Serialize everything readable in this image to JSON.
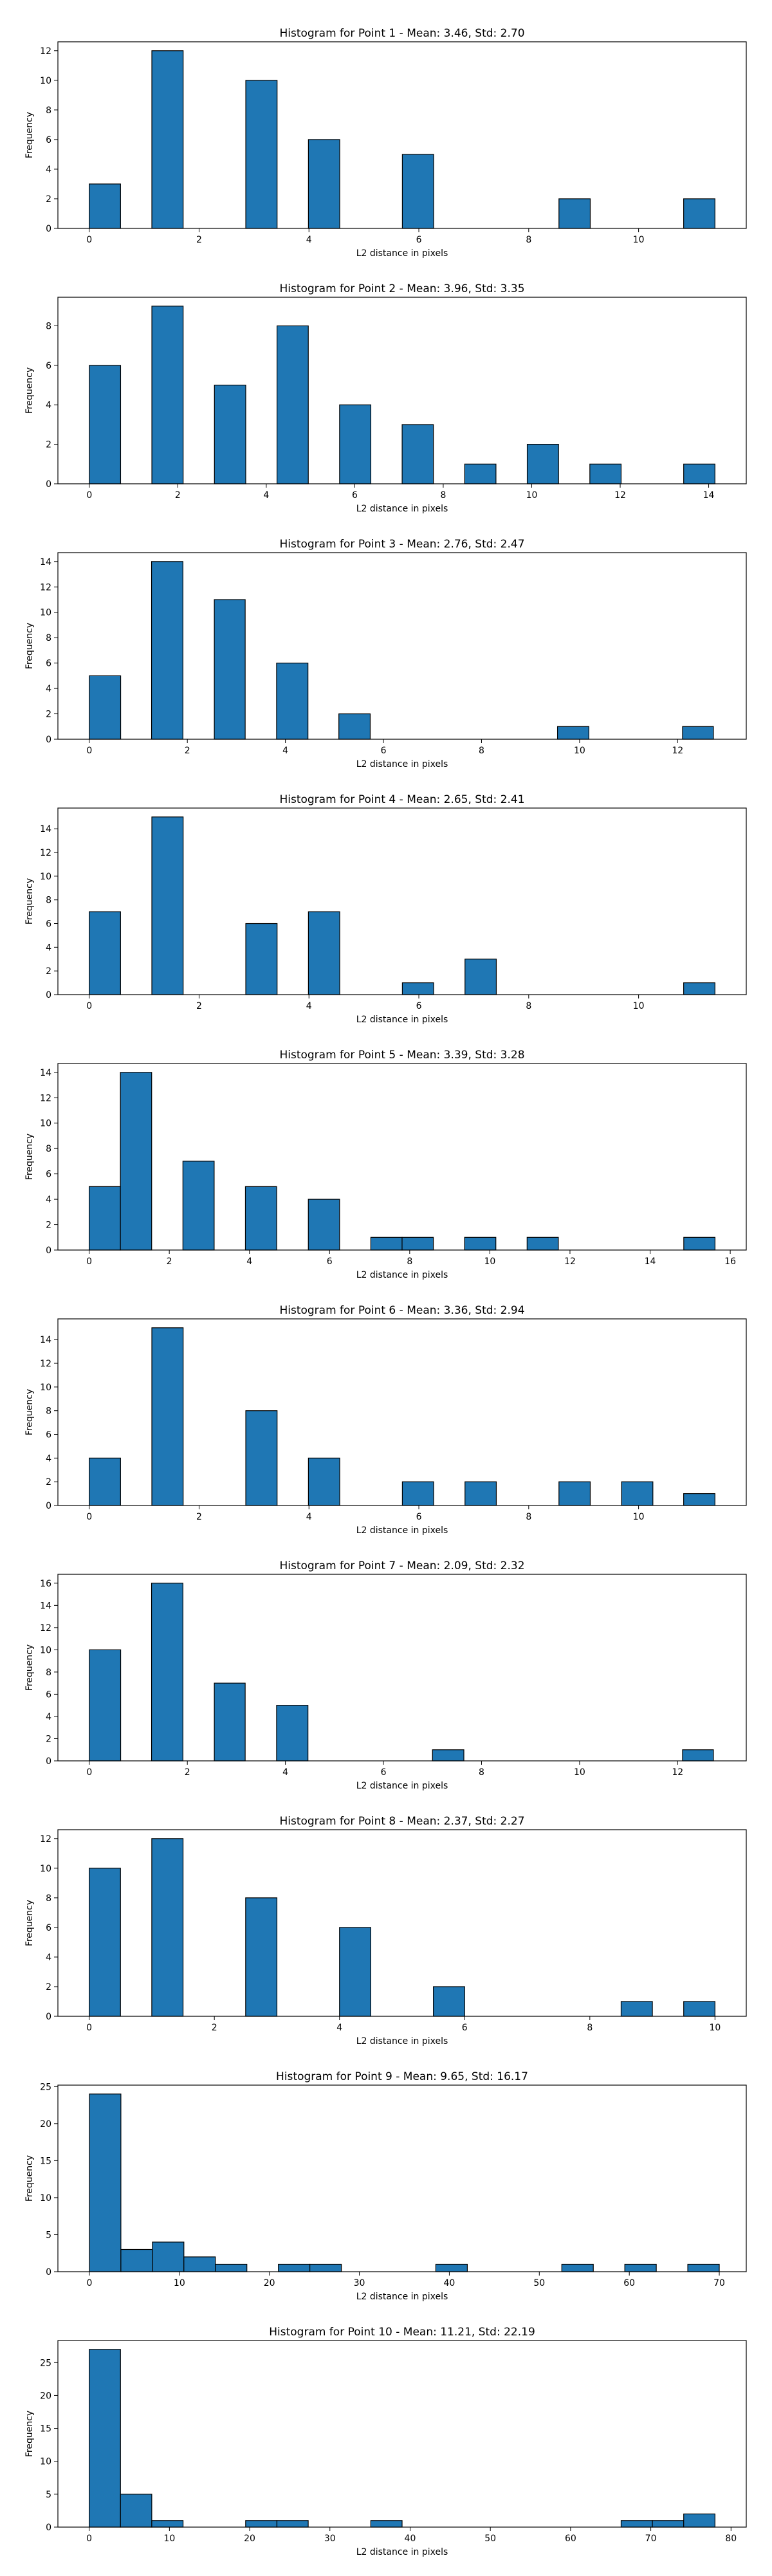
{
  "chart_data": [
    {
      "type": "bar",
      "title": "Histogram for Point 1 - Mean: 3.46, Std: 2.70",
      "xlabel": "L2 distance in pixels",
      "ylabel": "Frequency",
      "xlim": [
        -0.57,
        11.96
      ],
      "ylim": [
        0,
        12.6
      ],
      "xticks": [
        0,
        2,
        4,
        6,
        8,
        10
      ],
      "yticks": [
        0,
        2,
        4,
        6,
        8,
        10,
        12
      ],
      "bins": [
        {
          "x0": 0,
          "x1": 0.57,
          "v": 3
        },
        {
          "x0": 1.14,
          "x1": 1.71,
          "v": 12
        },
        {
          "x0": 2.85,
          "x1": 3.42,
          "v": 10
        },
        {
          "x0": 3.99,
          "x1": 4.56,
          "v": 6
        },
        {
          "x0": 5.7,
          "x1": 6.27,
          "v": 5
        },
        {
          "x0": 8.55,
          "x1": 9.12,
          "v": 2
        },
        {
          "x0": 10.82,
          "x1": 11.39,
          "v": 2
        }
      ]
    },
    {
      "type": "bar",
      "title": "Histogram for Point 2 - Mean: 3.96, Std: 3.35",
      "xlabel": "L2 distance in pixels",
      "ylabel": "Frequency",
      "xlim": [
        -0.71,
        14.85
      ],
      "ylim": [
        0,
        9.45
      ],
      "xticks": [
        0,
        2,
        4,
        6,
        8,
        10,
        12,
        14
      ],
      "yticks": [
        0,
        2,
        4,
        6,
        8
      ],
      "bins": [
        {
          "x0": 0,
          "x1": 0.707,
          "v": 6
        },
        {
          "x0": 1.414,
          "x1": 2.121,
          "v": 9
        },
        {
          "x0": 2.828,
          "x1": 3.536,
          "v": 5
        },
        {
          "x0": 4.243,
          "x1": 4.95,
          "v": 8
        },
        {
          "x0": 5.657,
          "x1": 6.364,
          "v": 4
        },
        {
          "x0": 7.071,
          "x1": 7.778,
          "v": 3
        },
        {
          "x0": 8.485,
          "x1": 9.192,
          "v": 1
        },
        {
          "x0": 9.899,
          "x1": 10.607,
          "v": 2
        },
        {
          "x0": 11.314,
          "x1": 12.021,
          "v": 1
        },
        {
          "x0": 13.435,
          "x1": 14.142,
          "v": 1
        }
      ]
    },
    {
      "type": "bar",
      "title": "Histogram for Point 3 - Mean: 2.76, Std: 2.47",
      "xlabel": "L2 distance in pixels",
      "ylabel": "Frequency",
      "xlim": [
        -0.64,
        13.4
      ],
      "ylim": [
        0,
        14.7
      ],
      "xticks": [
        0,
        2,
        4,
        6,
        8,
        10,
        12
      ],
      "yticks": [
        0,
        2,
        4,
        6,
        8,
        10,
        12,
        14
      ],
      "bins": [
        {
          "x0": 0,
          "x1": 0.64,
          "v": 5
        },
        {
          "x0": 1.27,
          "x1": 1.91,
          "v": 14
        },
        {
          "x0": 2.55,
          "x1": 3.18,
          "v": 11
        },
        {
          "x0": 3.82,
          "x1": 4.46,
          "v": 6
        },
        {
          "x0": 5.09,
          "x1": 5.73,
          "v": 2
        },
        {
          "x0": 9.55,
          "x1": 10.19,
          "v": 1
        },
        {
          "x0": 12.1,
          "x1": 12.73,
          "v": 1
        }
      ]
    },
    {
      "type": "bar",
      "title": "Histogram for Point 4 - Mean: 2.65, Std: 2.41",
      "xlabel": "L2 distance in pixels",
      "ylabel": "Frequency",
      "xlim": [
        -0.57,
        11.96
      ],
      "ylim": [
        0,
        15.75
      ],
      "xticks": [
        0,
        2,
        4,
        6,
        8,
        10
      ],
      "yticks": [
        0,
        2,
        4,
        6,
        8,
        10,
        12,
        14
      ],
      "bins": [
        {
          "x0": 0,
          "x1": 0.57,
          "v": 7
        },
        {
          "x0": 1.14,
          "x1": 1.71,
          "v": 15
        },
        {
          "x0": 2.85,
          "x1": 3.42,
          "v": 6
        },
        {
          "x0": 3.99,
          "x1": 4.56,
          "v": 7
        },
        {
          "x0": 5.7,
          "x1": 6.27,
          "v": 1
        },
        {
          "x0": 6.84,
          "x1": 7.41,
          "v": 3
        },
        {
          "x0": 10.82,
          "x1": 11.39,
          "v": 1
        }
      ]
    },
    {
      "type": "bar",
      "title": "Histogram for Point 5 - Mean: 3.39, Std: 3.28",
      "xlabel": "L2 distance in pixels",
      "ylabel": "Frequency",
      "xlim": [
        -0.78,
        16.4
      ],
      "ylim": [
        0,
        14.7
      ],
      "xticks": [
        0,
        2,
        4,
        6,
        8,
        10,
        12,
        14,
        16
      ],
      "yticks": [
        0,
        2,
        4,
        6,
        8,
        10,
        12,
        14
      ],
      "bins": [
        {
          "x0": 0,
          "x1": 0.78,
          "v": 5
        },
        {
          "x0": 0.78,
          "x1": 1.56,
          "v": 14
        },
        {
          "x0": 2.34,
          "x1": 3.12,
          "v": 7
        },
        {
          "x0": 3.9,
          "x1": 4.68,
          "v": 5
        },
        {
          "x0": 5.47,
          "x1": 6.25,
          "v": 4
        },
        {
          "x0": 7.03,
          "x1": 7.81,
          "v": 1
        },
        {
          "x0": 7.81,
          "x1": 8.59,
          "v": 1
        },
        {
          "x0": 9.37,
          "x1": 10.15,
          "v": 1
        },
        {
          "x0": 10.93,
          "x1": 11.71,
          "v": 1
        },
        {
          "x0": 14.84,
          "x1": 15.62,
          "v": 1
        }
      ]
    },
    {
      "type": "bar",
      "title": "Histogram for Point 6 - Mean: 3.36, Std: 2.94",
      "xlabel": "L2 distance in pixels",
      "ylabel": "Frequency",
      "xlim": [
        -0.57,
        11.96
      ],
      "ylim": [
        0,
        15.75
      ],
      "xticks": [
        0,
        2,
        4,
        6,
        8,
        10
      ],
      "yticks": [
        0,
        2,
        4,
        6,
        8,
        10,
        12,
        14
      ],
      "bins": [
        {
          "x0": 0,
          "x1": 0.57,
          "v": 4
        },
        {
          "x0": 1.14,
          "x1": 1.71,
          "v": 15
        },
        {
          "x0": 2.85,
          "x1": 3.42,
          "v": 8
        },
        {
          "x0": 3.99,
          "x1": 4.56,
          "v": 4
        },
        {
          "x0": 5.7,
          "x1": 6.27,
          "v": 2
        },
        {
          "x0": 6.84,
          "x1": 7.41,
          "v": 2
        },
        {
          "x0": 8.55,
          "x1": 9.12,
          "v": 2
        },
        {
          "x0": 9.69,
          "x1": 10.26,
          "v": 2
        },
        {
          "x0": 10.82,
          "x1": 11.39,
          "v": 1
        }
      ]
    },
    {
      "type": "bar",
      "title": "Histogram for Point 7 - Mean: 2.09, Std: 2.32",
      "xlabel": "L2 distance in pixels",
      "ylabel": "Frequency",
      "xlim": [
        -0.64,
        13.4
      ],
      "ylim": [
        0,
        16.8
      ],
      "xticks": [
        0,
        2,
        4,
        6,
        8,
        10,
        12
      ],
      "yticks": [
        0,
        2,
        4,
        6,
        8,
        10,
        12,
        14,
        16
      ],
      "bins": [
        {
          "x0": 0,
          "x1": 0.64,
          "v": 10
        },
        {
          "x0": 1.27,
          "x1": 1.91,
          "v": 16
        },
        {
          "x0": 2.55,
          "x1": 3.18,
          "v": 7
        },
        {
          "x0": 3.82,
          "x1": 4.46,
          "v": 5
        },
        {
          "x0": 7.0,
          "x1": 7.64,
          "v": 1
        },
        {
          "x0": 12.1,
          "x1": 12.73,
          "v": 1
        }
      ]
    },
    {
      "type": "bar",
      "title": "Histogram for Point 8 - Mean: 2.37, Std: 2.27",
      "xlabel": "L2 distance in pixels",
      "ylabel": "Frequency",
      "xlim": [
        -0.5,
        10.5
      ],
      "ylim": [
        0,
        12.6
      ],
      "xticks": [
        0,
        2,
        4,
        6,
        8,
        10
      ],
      "yticks": [
        0,
        2,
        4,
        6,
        8,
        10,
        12
      ],
      "bins": [
        {
          "x0": 0,
          "x1": 0.5,
          "v": 10
        },
        {
          "x0": 1.0,
          "x1": 1.5,
          "v": 12
        },
        {
          "x0": 2.5,
          "x1": 3.0,
          "v": 8
        },
        {
          "x0": 4.0,
          "x1": 4.5,
          "v": 6
        },
        {
          "x0": 5.5,
          "x1": 6.0,
          "v": 2
        },
        {
          "x0": 8.5,
          "x1": 9.0,
          "v": 1
        },
        {
          "x0": 9.5,
          "x1": 10.0,
          "v": 1
        }
      ]
    },
    {
      "type": "bar",
      "title": "Histogram for Point 9 - Mean: 9.65, Std: 16.17",
      "xlabel": "L2 distance in pixels",
      "ylabel": "Frequency",
      "xlim": [
        -3.5,
        73.0
      ],
      "ylim": [
        0,
        25.2
      ],
      "xticks": [
        0,
        10,
        20,
        30,
        40,
        50,
        60,
        70
      ],
      "yticks": [
        0,
        5,
        10,
        15,
        20,
        25
      ],
      "bins": [
        {
          "x0": 0,
          "x1": 3.5,
          "v": 24
        },
        {
          "x0": 3.5,
          "x1": 7,
          "v": 3
        },
        {
          "x0": 7,
          "x1": 10.5,
          "v": 4
        },
        {
          "x0": 10.5,
          "x1": 14,
          "v": 2
        },
        {
          "x0": 14,
          "x1": 17.5,
          "v": 1
        },
        {
          "x0": 21,
          "x1": 24.5,
          "v": 1
        },
        {
          "x0": 24.5,
          "x1": 28,
          "v": 1
        },
        {
          "x0": 38.5,
          "x1": 42,
          "v": 1
        },
        {
          "x0": 52.5,
          "x1": 56,
          "v": 1
        },
        {
          "x0": 59.5,
          "x1": 63,
          "v": 1
        },
        {
          "x0": 66.5,
          "x1": 70,
          "v": 1
        }
      ]
    },
    {
      "type": "bar",
      "title": "Histogram for Point 10 - Mean: 11.21, Std: 22.19",
      "xlabel": "L2 distance in pixels",
      "ylabel": "Frequency",
      "xlim": [
        -3.9,
        81.9
      ],
      "ylim": [
        0,
        28.35
      ],
      "xticks": [
        0,
        10,
        20,
        30,
        40,
        50,
        60,
        70,
        80
      ],
      "yticks": [
        0,
        5,
        10,
        15,
        20,
        25
      ],
      "bins": [
        {
          "x0": 0,
          "x1": 3.9,
          "v": 27
        },
        {
          "x0": 3.9,
          "x1": 7.8,
          "v": 5
        },
        {
          "x0": 7.8,
          "x1": 11.7,
          "v": 1
        },
        {
          "x0": 19.5,
          "x1": 23.4,
          "v": 1
        },
        {
          "x0": 23.4,
          "x1": 27.3,
          "v": 1
        },
        {
          "x0": 35.1,
          "x1": 39,
          "v": 1
        },
        {
          "x0": 66.3,
          "x1": 70.2,
          "v": 1
        },
        {
          "x0": 70.2,
          "x1": 74.1,
          "v": 1
        },
        {
          "x0": 74.1,
          "x1": 78,
          "v": 2
        }
      ]
    }
  ],
  "colors": {
    "bar_fill": "#1f77b4",
    "bar_edge": "#000000",
    "axis": "#000000",
    "text": "#000000"
  }
}
